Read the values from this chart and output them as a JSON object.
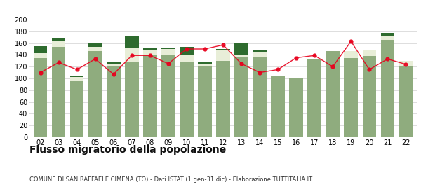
{
  "years": [
    "02",
    "03",
    "04",
    "05",
    "06",
    "07",
    "08",
    "09",
    "10",
    "11",
    "12",
    "13",
    "14",
    "15",
    "16",
    "17",
    "18",
    "19",
    "20",
    "21",
    "22"
  ],
  "iscritti_comuni": [
    135,
    153,
    95,
    146,
    120,
    128,
    140,
    140,
    128,
    120,
    130,
    136,
    136,
    105,
    101,
    133,
    147,
    135,
    138,
    165,
    122
  ],
  "iscritti_estero": [
    8,
    10,
    7,
    8,
    5,
    23,
    8,
    10,
    13,
    5,
    18,
    5,
    8,
    0,
    0,
    0,
    0,
    12,
    10,
    8,
    8
  ],
  "iscritti_altri": [
    12,
    5,
    3,
    5,
    3,
    20,
    3,
    2,
    12,
    3,
    2,
    18,
    5,
    0,
    0,
    0,
    0,
    0,
    0,
    4,
    0
  ],
  "cancellati": [
    110,
    127,
    115,
    133,
    107,
    139,
    139,
    125,
    150,
    150,
    157,
    125,
    110,
    115,
    135,
    139,
    120,
    163,
    115,
    133,
    124
  ],
  "bar1_color": "#8fac7e",
  "bar2_color": "#e8eed8",
  "bar3_color": "#2e6b2e",
  "line_color": "#e8001c",
  "grid_color": "#d8d8d8",
  "bg_color": "#ffffff",
  "title": "Flusso migratorio della popolazione",
  "subtitle": "COMUNE DI SAN RAFFAELE CIMENA (TO) - Dati ISTAT (1 gen-31 dic) - Elaborazione TUTTITALIA.IT",
  "ylim": [
    0,
    200
  ],
  "yticks": [
    0,
    20,
    40,
    60,
    80,
    100,
    120,
    140,
    160,
    180,
    200
  ],
  "title_fontsize": 10,
  "subtitle_fontsize": 6,
  "tick_fontsize": 7,
  "legend_fontsize": 6.5
}
